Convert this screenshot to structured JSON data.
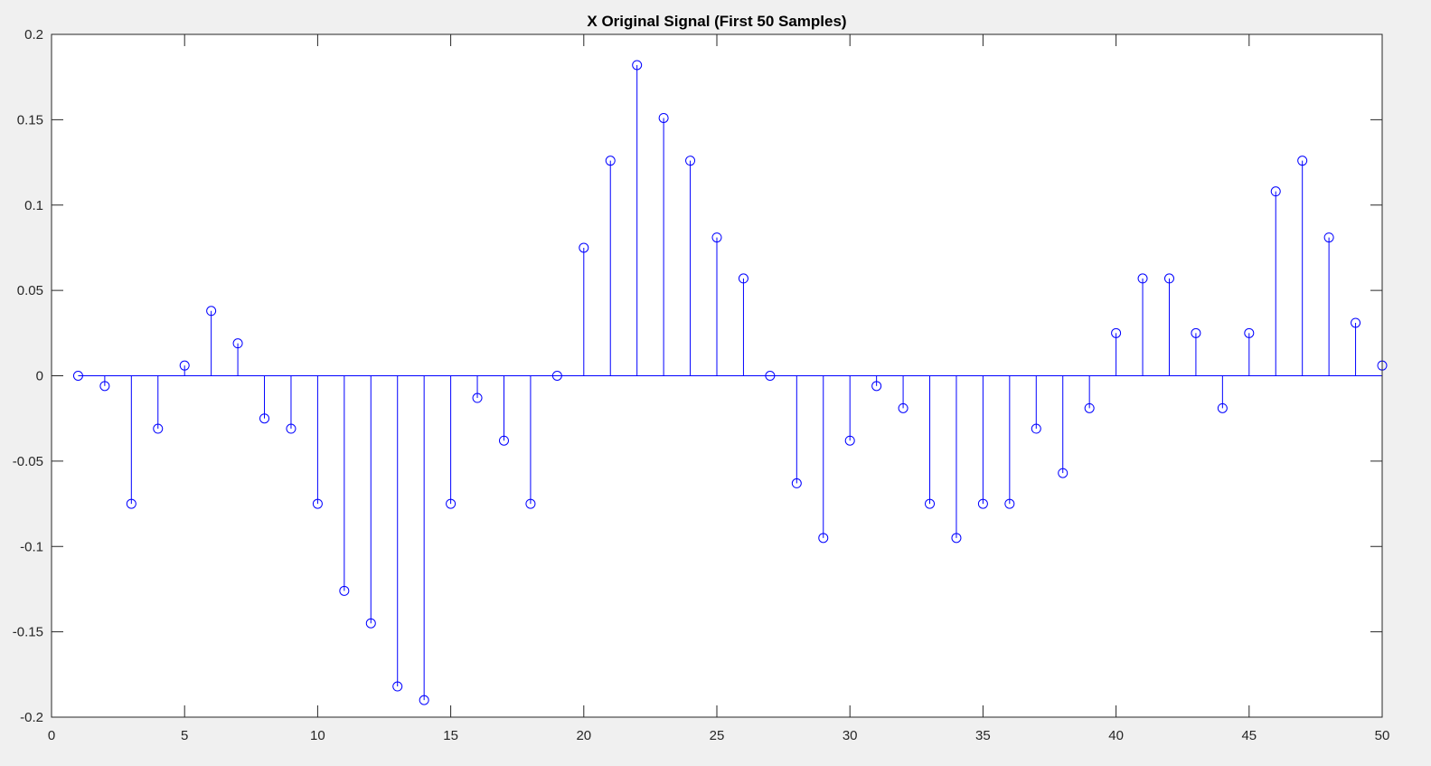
{
  "chart_data": {
    "type": "stem",
    "title": "X Original Signal (First 50 Samples)",
    "xlabel": "",
    "ylabel": "",
    "xlim": [
      0,
      50
    ],
    "ylim": [
      -0.2,
      0.2
    ],
    "x_ticks": [
      0,
      5,
      10,
      15,
      20,
      25,
      30,
      35,
      40,
      45,
      50
    ],
    "x_tick_labels": [
      "0",
      "5",
      "10",
      "15",
      "20",
      "25",
      "30",
      "35",
      "40",
      "45",
      "50"
    ],
    "y_ticks": [
      -0.2,
      -0.15,
      -0.1,
      -0.05,
      0,
      0.05,
      0.1,
      0.15,
      0.2
    ],
    "y_tick_labels": [
      "-0.2",
      "-0.15",
      "-0.1",
      "-0.05",
      "0",
      "0.05",
      "0.1",
      "0.15",
      "0.2"
    ],
    "grid": false,
    "x": [
      1,
      2,
      3,
      4,
      5,
      6,
      7,
      8,
      9,
      10,
      11,
      12,
      13,
      14,
      15,
      16,
      17,
      18,
      19,
      20,
      21,
      22,
      23,
      24,
      25,
      26,
      27,
      28,
      29,
      30,
      31,
      32,
      33,
      34,
      35,
      36,
      37,
      38,
      39,
      40,
      41,
      42,
      43,
      44,
      45,
      46,
      47,
      48,
      49,
      50
    ],
    "values": [
      0,
      -0.006,
      -0.075,
      -0.031,
      0.006,
      0.038,
      0.019,
      -0.025,
      -0.031,
      -0.075,
      -0.126,
      -0.145,
      -0.182,
      -0.19,
      -0.075,
      -0.013,
      -0.038,
      -0.075,
      0,
      0.075,
      0.126,
      0.182,
      0.151,
      0.126,
      0.081,
      0.057,
      0,
      -0.063,
      -0.095,
      -0.038,
      -0.006,
      -0.019,
      -0.075,
      -0.095,
      -0.075,
      -0.075,
      -0.031,
      -0.057,
      -0.019,
      0.025,
      0.057,
      0.057,
      0.025,
      -0.019,
      0.025,
      0.108,
      0.126,
      0.081,
      0.031,
      0.006
    ],
    "colors": {
      "stem": "#0000ff",
      "axes": "#262626",
      "background": "#ffffff",
      "figure": "#f0f0f0"
    }
  }
}
